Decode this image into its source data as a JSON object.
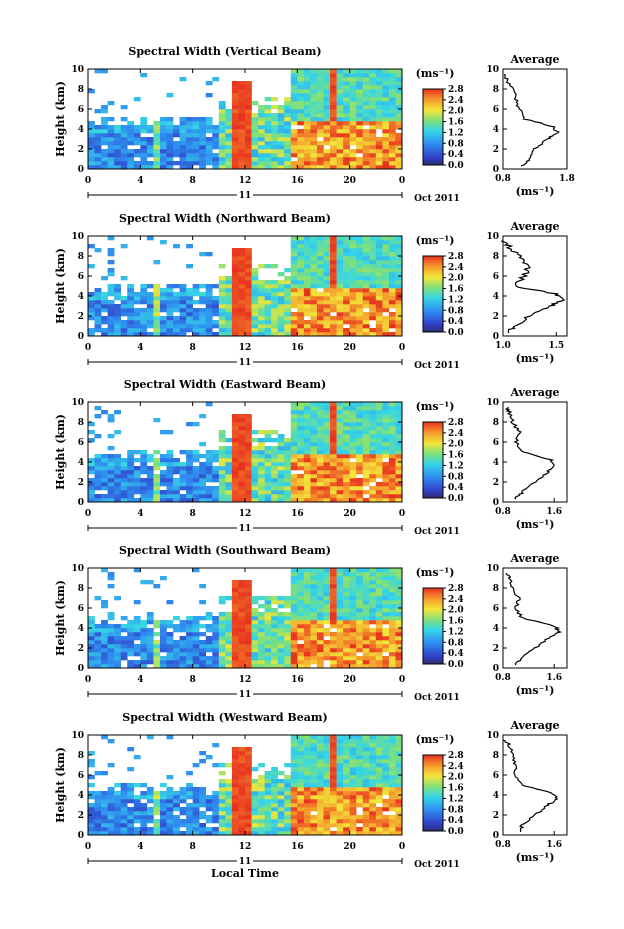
{
  "figure": {
    "xlabel": "Local Time",
    "date_label": "Oct 2011",
    "day_label": "11",
    "ylabel": "Height (km)",
    "colorbar_unit": "(ms⁻¹)",
    "avg_title": "Average",
    "avg_xlabel": "(ms⁻¹)",
    "x_ticks": [
      "0",
      "4",
      "8",
      "12",
      "16",
      "20",
      "0"
    ],
    "y_ticks": [
      "0",
      "2",
      "4",
      "6",
      "8",
      "10"
    ],
    "colorbar_ticks": [
      "0.0",
      "0.4",
      "0.8",
      "1.2",
      "1.6",
      "2.0",
      "2.4",
      "2.8"
    ]
  },
  "chart_data": [
    {
      "type": "heatmap",
      "title": "Spectral Width (Vertical Beam)",
      "xlabel": "Local Time",
      "ylabel": "Height (km)",
      "xlim": [
        0,
        24
      ],
      "ylim": [
        0,
        10
      ],
      "zlim": [
        0,
        2.8
      ],
      "avg_profile": {
        "xlim": [
          0.8,
          1.8
        ],
        "x_ticks": [
          "0.8",
          "1.8"
        ],
        "heights": [
          0.3,
          1.0,
          2.0,
          3.0,
          3.6,
          4.2,
          5.0,
          6.0,
          7.0,
          8.0,
          9.0,
          9.6
        ],
        "values": [
          1.1,
          1.2,
          1.3,
          1.5,
          1.65,
          1.6,
          1.15,
          1.05,
          1.0,
          0.95,
          0.85,
          0.8
        ]
      }
    },
    {
      "type": "heatmap",
      "title": "Spectral Width (Northward Beam)",
      "xlabel": "Local Time",
      "ylabel": "Height (km)",
      "xlim": [
        0,
        24
      ],
      "ylim": [
        0,
        10
      ],
      "zlim": [
        0,
        2.8
      ],
      "avg_profile": {
        "xlim": [
          1.0,
          1.6
        ],
        "x_ticks": [
          "1.0",
          "1.5"
        ],
        "heights": [
          0.3,
          1.0,
          2.0,
          3.0,
          3.6,
          4.2,
          5.0,
          6.0,
          7.0,
          8.0,
          9.0,
          9.6
        ],
        "values": [
          1.05,
          1.1,
          1.25,
          1.45,
          1.55,
          1.5,
          1.1,
          1.2,
          1.25,
          1.15,
          1.05,
          1.0
        ]
      }
    },
    {
      "type": "heatmap",
      "title": "Spectral Width (Eastward Beam)",
      "xlabel": "Local Time",
      "ylabel": "Height (km)",
      "xlim": [
        0,
        24
      ],
      "ylim": [
        0,
        10
      ],
      "zlim": [
        0,
        2.8
      ],
      "avg_profile": {
        "xlim": [
          0.8,
          1.8
        ],
        "x_ticks": [
          "0.8",
          "1.6"
        ],
        "heights": [
          0.3,
          1.0,
          2.0,
          3.0,
          3.6,
          4.2,
          5.0,
          6.0,
          7.0,
          8.0,
          9.0,
          9.6
        ],
        "values": [
          1.0,
          1.1,
          1.3,
          1.5,
          1.6,
          1.55,
          1.1,
          1.0,
          1.05,
          0.95,
          0.9,
          0.85
        ]
      }
    },
    {
      "type": "heatmap",
      "title": "Spectral Width (Southward Beam)",
      "xlabel": "Local Time",
      "ylabel": "Height (km)",
      "xlim": [
        0,
        24
      ],
      "ylim": [
        0,
        10
      ],
      "zlim": [
        0,
        2.8
      ],
      "avg_profile": {
        "xlim": [
          0.8,
          1.8
        ],
        "x_ticks": [
          "0.8",
          "1.6"
        ],
        "heights": [
          0.3,
          1.0,
          2.0,
          3.0,
          3.6,
          4.2,
          5.0,
          6.0,
          7.0,
          8.0,
          9.0,
          9.6
        ],
        "values": [
          1.0,
          1.1,
          1.3,
          1.5,
          1.7,
          1.6,
          1.1,
          1.0,
          1.05,
          0.95,
          0.9,
          0.85
        ]
      }
    },
    {
      "type": "heatmap",
      "title": "Spectral Width (Westward Beam)",
      "xlabel": "Local Time",
      "ylabel": "Height (km)",
      "xlim": [
        0,
        24
      ],
      "ylim": [
        0,
        10
      ],
      "zlim": [
        0,
        2.8
      ],
      "avg_profile": {
        "xlim": [
          0.8,
          1.8
        ],
        "x_ticks": [
          "0.8",
          "1.6"
        ],
        "heights": [
          0.3,
          1.0,
          2.0,
          3.0,
          3.6,
          4.2,
          5.0,
          6.0,
          7.0,
          8.0,
          9.0,
          9.6
        ],
        "values": [
          1.05,
          1.1,
          1.3,
          1.5,
          1.65,
          1.55,
          1.1,
          1.0,
          1.0,
          0.95,
          0.9,
          0.8
        ]
      }
    }
  ]
}
